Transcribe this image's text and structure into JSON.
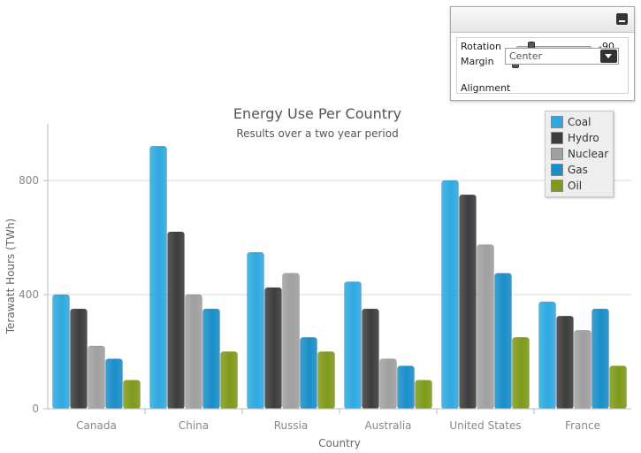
{
  "chart_data": {
    "type": "bar",
    "title": "Energy Use Per Country",
    "subtitle": "Results over a two year period",
    "xlabel": "Country",
    "ylabel": "Terawatt Hours (TWh)",
    "ylim": [
      0,
      800
    ],
    "yticks": [
      "0",
      "400",
      "800"
    ],
    "grid": true,
    "legend_position": "top-right",
    "categories": [
      "Canada",
      "China",
      "Russia",
      "Australia",
      "United States",
      "France"
    ],
    "series": [
      {
        "name": "Coal",
        "color": "#2fa9e0",
        "values": [
          400,
          920,
          548,
          445,
          800,
          375
        ]
      },
      {
        "name": "Hydro",
        "color": "#3d3d3d",
        "values": [
          350,
          620,
          425,
          350,
          750,
          325
        ]
      },
      {
        "name": "Nuclear",
        "color": "#a0a0a0",
        "values": [
          220,
          400,
          475,
          175,
          575,
          275
        ]
      },
      {
        "name": "Gas",
        "color": "#1a8ec9",
        "values": [
          175,
          350,
          250,
          150,
          475,
          350
        ]
      },
      {
        "name": "Oil",
        "color": "#7f9a1a",
        "values": [
          100,
          200,
          200,
          100,
          250,
          150
        ]
      }
    ]
  },
  "options_panel": {
    "rotation_label": "Rotation",
    "rotation_value": "-90",
    "rotation_fraction": 0.2,
    "margin_label": "Margin",
    "margin_value": "0",
    "margin_fraction": 0.0,
    "alignment_label": "Alignment",
    "alignment_value": "Center",
    "minimize_icon": "minimize-icon",
    "dropdown_icon": "chevron-down-icon"
  }
}
